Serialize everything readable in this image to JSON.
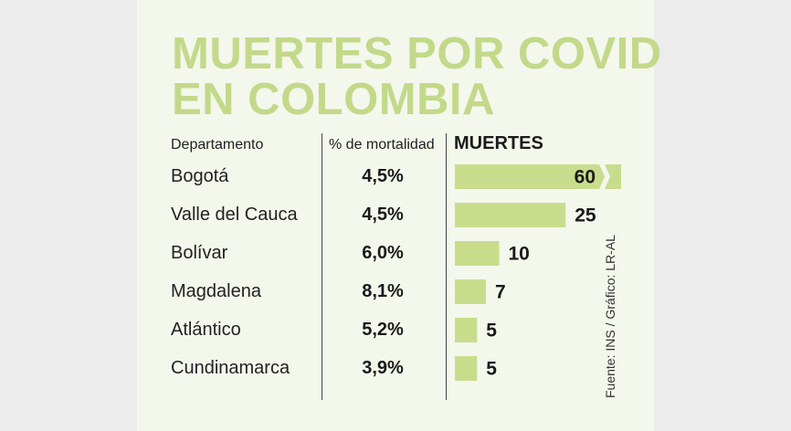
{
  "title_line1": "MUERTES POR COVID",
  "title_line2": "EN COLOMBIA",
  "source": "Fuente: INS / Gráfico: LR-AL",
  "colors": {
    "bar": "#c8dd8c",
    "title": "#c3d98a",
    "panel": "#f4f7ec"
  },
  "chart_data": {
    "type": "bar",
    "orientation": "horizontal",
    "columns": {
      "category": "Departamento",
      "rate": "% de mortalidad",
      "value": "MUERTES"
    },
    "categories": [
      "Bogotá",
      "Valle del Cauca",
      "Bolívar",
      "Magdalena",
      "Atlántico",
      "Cundinamarca"
    ],
    "rates": [
      "4,5%",
      "4,5%",
      "6,0%",
      "8,1%",
      "5,2%",
      "3,9%"
    ],
    "values": [
      60,
      25,
      10,
      7,
      5,
      5
    ],
    "broken_axis_category": "Bogotá"
  }
}
